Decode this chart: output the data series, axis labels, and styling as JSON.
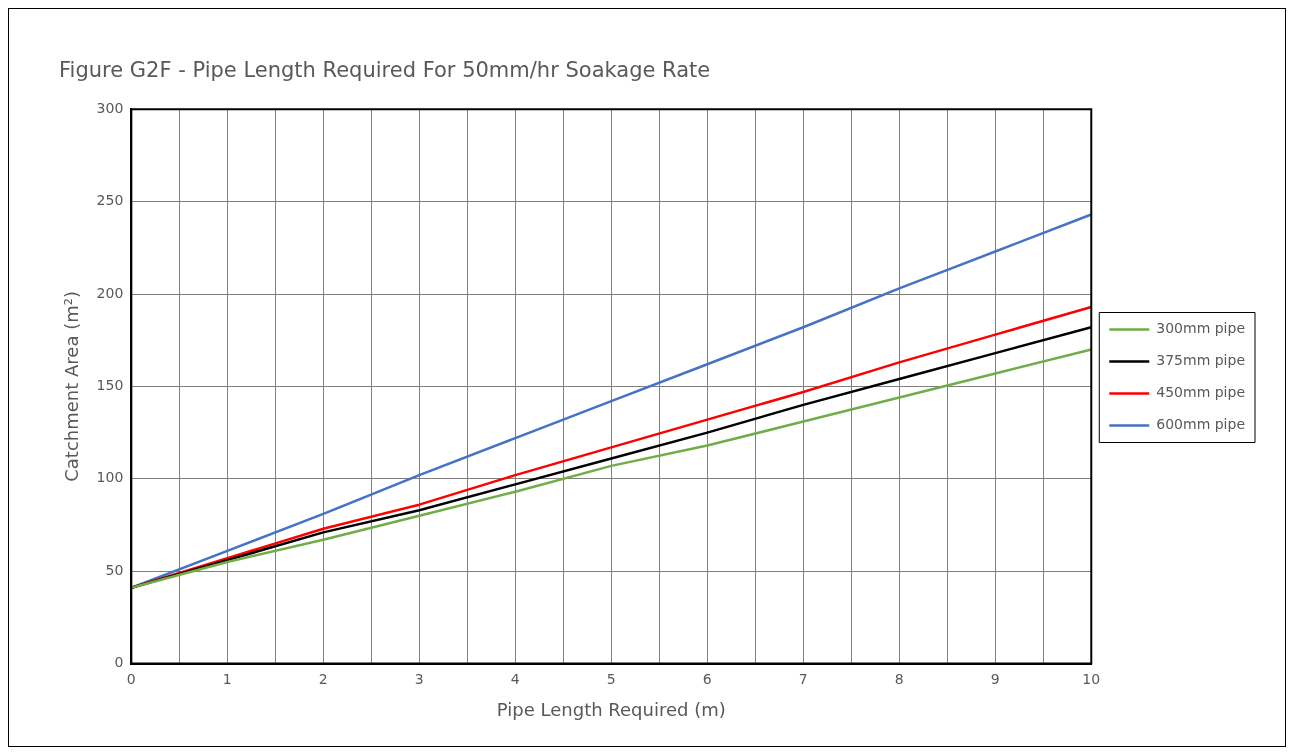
{
  "chart_data": {
    "type": "line",
    "title": "Figure G2F - Pipe Length Required For 50mm/hr Soakage Rate",
    "xlabel": "Pipe Length Required (m)",
    "ylabel": "Catchment Area (m²)",
    "x": [
      0,
      1,
      2,
      3,
      4,
      5,
      6,
      7,
      8,
      9,
      10
    ],
    "series": [
      {
        "name": "300mm pipe",
        "color": "#70ad47",
        "values": [
          41,
          55,
          67,
          80,
          93,
          107,
          118,
          131,
          144,
          157,
          170
        ]
      },
      {
        "name": "375mm pipe",
        "color": "#000000",
        "values": [
          41,
          56,
          71,
          83,
          97,
          111,
          125,
          140,
          154,
          168,
          182
        ]
      },
      {
        "name": "450mm pipe",
        "color": "#ff0000",
        "values": [
          41,
          57,
          73,
          86,
          102,
          117,
          132,
          147,
          163,
          178,
          193
        ]
      },
      {
        "name": "600mm pipe",
        "color": "#4472c4",
        "values": [
          41,
          61,
          81,
          102,
          122,
          142,
          162,
          182,
          203,
          223,
          243
        ]
      }
    ],
    "xlim": [
      0,
      10
    ],
    "xticks": [
      0,
      {
        "value": 0.5,
        "label": null
      },
      1,
      {
        "value": 1.5,
        "label": null
      },
      2,
      {
        "value": 2.5,
        "label": null
      },
      3,
      {
        "value": 3.5,
        "label": null
      },
      4,
      {
        "value": 4.5,
        "label": null
      },
      5,
      {
        "value": 5.5,
        "label": null
      },
      6,
      {
        "value": 6.5,
        "label": null
      },
      7,
      {
        "value": 7.5,
        "label": null
      },
      8,
      {
        "value": 8.5,
        "label": null
      },
      9,
      {
        "value": 9.5,
        "label": null
      },
      10
    ],
    "ylim": [
      0,
      300
    ],
    "yticks": [
      0,
      50,
      100,
      150,
      200,
      250,
      300
    ],
    "grid": true,
    "legend": "right",
    "marker": "none",
    "line_style": "solid"
  }
}
